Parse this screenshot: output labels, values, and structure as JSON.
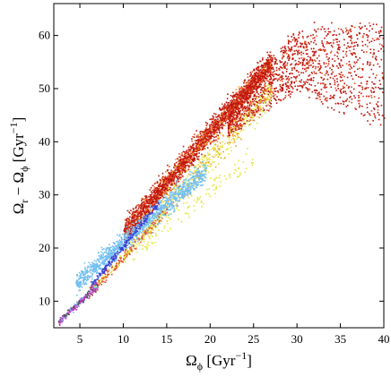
{
  "chart_data": {
    "type": "scatter",
    "title": "",
    "xlabel": {
      "base": "Ω",
      "sub": "ϕ",
      "unit": "[Gyr",
      "sup": "−1",
      "close": "]"
    },
    "ylabel": {
      "base": "Ω",
      "sub1": "r",
      "minus": " − Ω",
      "sub2": "ϕ",
      "unit": " [Gyr",
      "sup": "−1",
      "close": "]"
    },
    "xlim": [
      2,
      40
    ],
    "ylim": [
      5,
      66
    ],
    "xticks": [
      5,
      10,
      15,
      20,
      25,
      30,
      35,
      40
    ],
    "yticks": [
      10,
      20,
      30,
      40,
      50,
      60
    ],
    "grid": false,
    "legend": "none",
    "series": [
      {
        "color": "#c0180e",
        "weight": 0.45,
        "note": "dense red band"
      },
      {
        "color": "#e8502a",
        "weight": 0.18
      },
      {
        "color": "#f09a30",
        "weight": 0.08
      },
      {
        "color": "#e6e642",
        "weight": 0.07
      },
      {
        "color": "#72bff0",
        "weight": 0.14
      },
      {
        "color": "#3b3fd6",
        "weight": 0.03
      },
      {
        "color": "#c836c8",
        "weight": 0.02
      },
      {
        "color": "#505050",
        "weight": 0.03
      }
    ]
  }
}
